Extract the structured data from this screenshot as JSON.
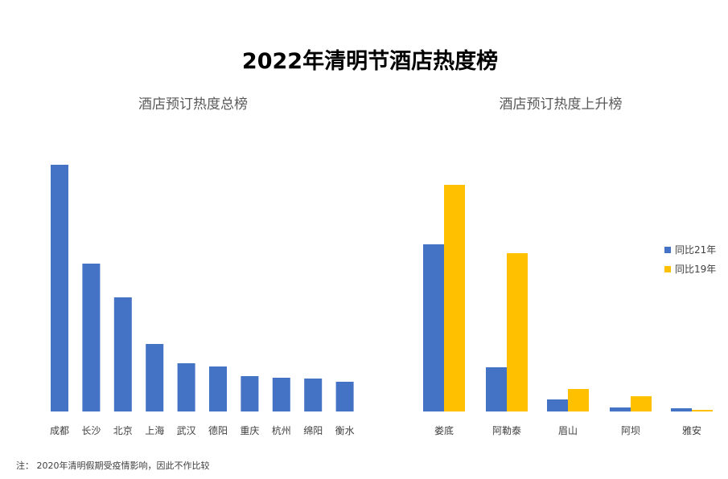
{
  "title": "2022年清明节酒店热度榜",
  "note": "注：   2020年清明假期受疫情影响，因此不作比较",
  "colors": {
    "blue": "#4472C4",
    "yellow": "#FFC000"
  },
  "chart_data": [
    {
      "type": "bar",
      "title": "酒店预订热度总榜",
      "categories": [
        "成都",
        "长沙",
        "北京",
        "上海",
        "武汉",
        "德阳",
        "重庆",
        "杭州",
        "绵阳",
        "衡水"
      ],
      "values": [
        307,
        184,
        142,
        84,
        60,
        56,
        44,
        42,
        41,
        37
      ],
      "grid": false
    },
    {
      "type": "bar",
      "title": "酒店预订热度上升榜",
      "categories": [
        "娄底",
        "阿勒泰",
        "眉山",
        "阿坝",
        "雅安"
      ],
      "series": [
        {
          "name": "同比21年",
          "values": [
            208,
            55,
            15,
            5,
            4
          ]
        },
        {
          "name": "同比19年",
          "values": [
            282,
            197,
            28,
            19,
            2
          ]
        }
      ],
      "legend": "right",
      "grid": false
    }
  ]
}
